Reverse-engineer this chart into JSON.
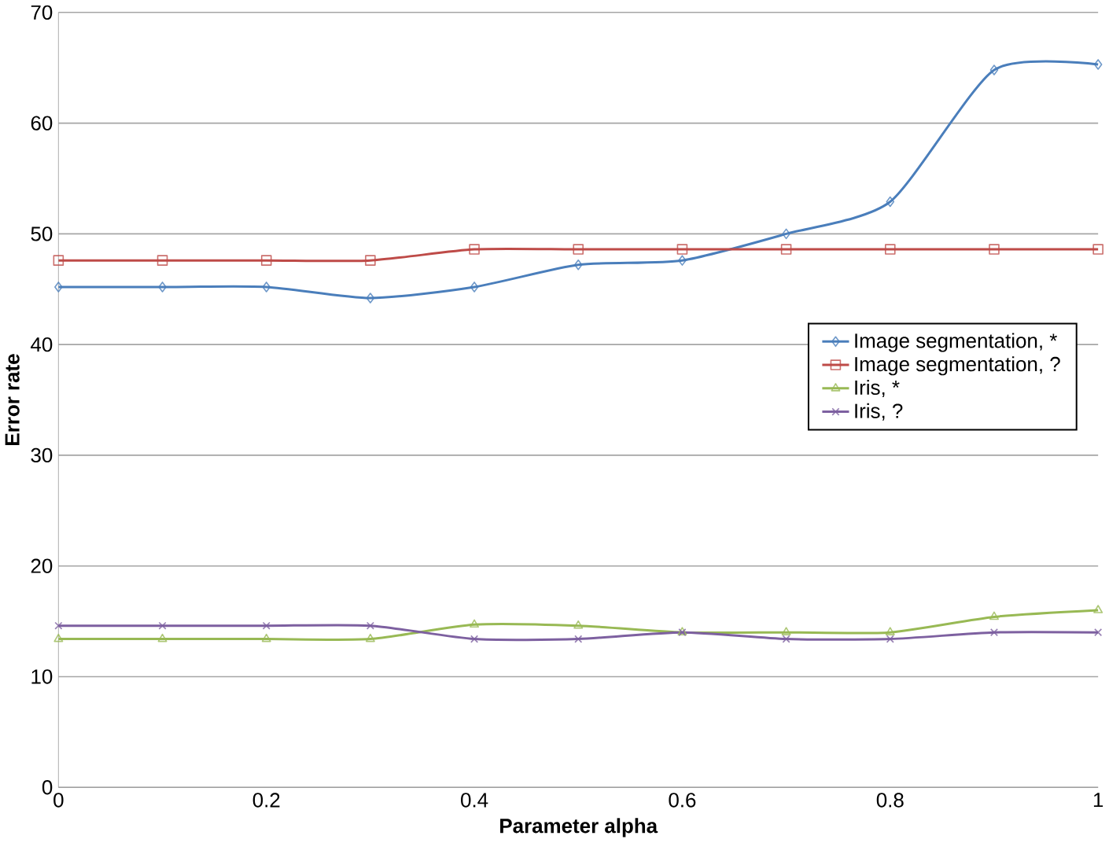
{
  "chart_data": {
    "type": "line",
    "xlabel": "Parameter alpha",
    "ylabel": "Error rate",
    "x": [
      0,
      0.1,
      0.2,
      0.3,
      0.4,
      0.5,
      0.6,
      0.7,
      0.8,
      0.9,
      1
    ],
    "xlim": [
      0,
      1
    ],
    "xticks": [
      0,
      0.2,
      0.4,
      0.6,
      0.8,
      1
    ],
    "ylim": [
      0,
      70
    ],
    "yticks": [
      0,
      10,
      20,
      30,
      40,
      50,
      60,
      70
    ],
    "grid": "y",
    "legend": "right",
    "series": [
      {
        "name": "Image segmentation, *",
        "color": "#4a7ebb",
        "marker": "diamond",
        "values": [
          45.2,
          45.2,
          45.2,
          44.2,
          45.2,
          47.2,
          47.6,
          50,
          52.9,
          64.8,
          65.3
        ]
      },
      {
        "name": "Image segmentation, ?",
        "color": "#be4b48",
        "marker": "square",
        "values": [
          47.6,
          47.6,
          47.6,
          47.6,
          48.6,
          48.6,
          48.6,
          48.6,
          48.6,
          48.6,
          48.6
        ]
      },
      {
        "name": "Iris, *",
        "color": "#98b954",
        "marker": "triangle",
        "values": [
          13.4,
          13.4,
          13.4,
          13.4,
          14.7,
          14.6,
          14,
          14,
          14,
          15.4,
          16
        ]
      },
      {
        "name": "Iris, ?",
        "color": "#7d60a0",
        "marker": "cross",
        "values": [
          14.6,
          14.6,
          14.6,
          14.6,
          13.4,
          13.4,
          14,
          13.4,
          13.4,
          14,
          14
        ]
      }
    ]
  }
}
